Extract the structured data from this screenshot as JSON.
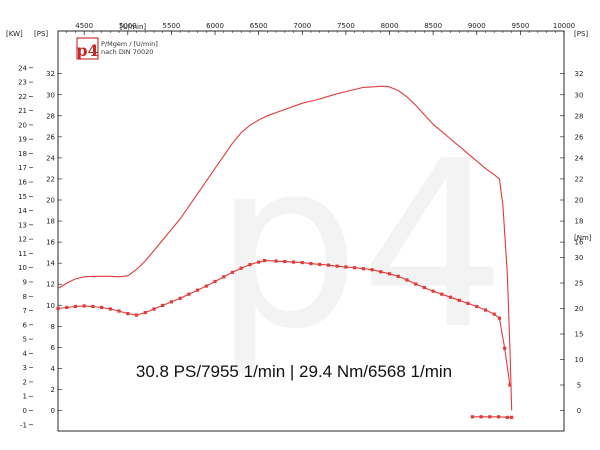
{
  "chart_data": {
    "type": "line",
    "x_axis": {
      "unit_label": "[U/min]",
      "ticks": [
        4500,
        5000,
        5500,
        6000,
        6500,
        7000,
        7500,
        8000,
        8500,
        9000,
        9500,
        10000
      ],
      "range": [
        4200,
        10000
      ]
    },
    "left_axes": {
      "kw_unit": "[KW]",
      "kw_ticks": [
        -1,
        0,
        1,
        2,
        3,
        4,
        5,
        6,
        7,
        8,
        9,
        10,
        11,
        12,
        13,
        14,
        15,
        16,
        17,
        18,
        19,
        20,
        21,
        22,
        23,
        24
      ],
      "ps_unit": "[PS]",
      "ps_ticks": [
        0,
        2,
        4,
        6,
        8,
        10,
        12,
        14,
        16,
        18,
        20,
        22,
        24,
        26,
        28,
        30,
        32
      ]
    },
    "right_axes": {
      "ps_unit": "[PS]",
      "ps_ticks": [
        0,
        2,
        4,
        6,
        8,
        10,
        12,
        14,
        16,
        18,
        20,
        22,
        24,
        26,
        28,
        30,
        32
      ],
      "nm_unit": "[Nm]",
      "nm_ticks": [
        0,
        5,
        10,
        15,
        20,
        25,
        30
      ]
    },
    "info_lines": [
      "P/Mgem / [U/min]",
      "nach DIN 70020"
    ],
    "summary": "30.8 PS/7955 1/min | 29.4 Nm/6568 1/min",
    "series": [
      {
        "role": "power",
        "unit": "PS",
        "color": "#e23a3a",
        "markers": false,
        "x": [
          4200,
          4300,
          4400,
          4500,
          4600,
          4700,
          4800,
          4900,
          5000,
          5100,
          5200,
          5300,
          5400,
          5500,
          5600,
          5700,
          5800,
          5900,
          6000,
          6100,
          6200,
          6300,
          6400,
          6500,
          6600,
          6700,
          6800,
          6900,
          7000,
          7100,
          7200,
          7300,
          7400,
          7500,
          7600,
          7700,
          7800,
          7900,
          7955,
          8000,
          8100,
          8200,
          8300,
          8400,
          8500,
          8600,
          8700,
          8800,
          8900,
          9000,
          9100,
          9200,
          9260,
          9300,
          9350,
          9380,
          9400
        ],
        "y": [
          11.6,
          12.1,
          12.5,
          12.7,
          12.75,
          12.75,
          12.75,
          12.7,
          12.8,
          13.4,
          14.2,
          15.2,
          16.2,
          17.2,
          18.2,
          19.4,
          20.6,
          21.8,
          23.0,
          24.2,
          25.4,
          26.4,
          27.1,
          27.6,
          28.0,
          28.3,
          28.6,
          28.9,
          29.2,
          29.4,
          29.6,
          29.85,
          30.1,
          30.3,
          30.5,
          30.7,
          30.75,
          30.8,
          30.8,
          30.75,
          30.4,
          29.8,
          29.0,
          28.1,
          27.2,
          26.5,
          25.8,
          25.1,
          24.4,
          23.7,
          23.0,
          22.4,
          22.0,
          19.5,
          13.0,
          6.0,
          0.0
        ]
      },
      {
        "role": "torque",
        "unit": "Nm",
        "color": "#e23a3a",
        "markers": true,
        "x": [
          4200,
          4300,
          4400,
          4500,
          4600,
          4700,
          4800,
          4900,
          5000,
          5100,
          5200,
          5300,
          5400,
          5500,
          5600,
          5700,
          5800,
          5900,
          6000,
          6100,
          6200,
          6300,
          6400,
          6500,
          6568,
          6700,
          6800,
          6900,
          7000,
          7100,
          7200,
          7300,
          7400,
          7500,
          7600,
          7700,
          7800,
          7900,
          8000,
          8100,
          8200,
          8300,
          8400,
          8500,
          8600,
          8700,
          8800,
          8900,
          9000,
          9100,
          9200,
          9260,
          9320,
          9380
        ],
        "y": [
          20.0,
          20.2,
          20.4,
          20.5,
          20.4,
          20.2,
          19.9,
          19.5,
          19.0,
          18.7,
          19.2,
          19.9,
          20.6,
          21.3,
          22.0,
          22.8,
          23.6,
          24.4,
          25.3,
          26.2,
          27.1,
          27.9,
          28.6,
          29.1,
          29.4,
          29.3,
          29.2,
          29.1,
          29.0,
          28.8,
          28.65,
          28.5,
          28.3,
          28.15,
          28.0,
          27.8,
          27.6,
          27.2,
          26.8,
          26.3,
          25.6,
          24.8,
          24.1,
          23.4,
          22.8,
          22.2,
          21.6,
          21.0,
          20.4,
          19.7,
          18.9,
          18.1,
          12.2,
          5.0
        ]
      },
      {
        "role": "coastdown",
        "unit": "PS",
        "color": "#e23a3a",
        "markers": true,
        "x": [
          8950,
          9050,
          9150,
          9250,
          9350,
          9400
        ],
        "y": [
          -0.6,
          -0.6,
          -0.6,
          -0.6,
          -0.65,
          -0.65
        ]
      }
    ],
    "grid": false,
    "legend": "none"
  },
  "watermark": "p4"
}
